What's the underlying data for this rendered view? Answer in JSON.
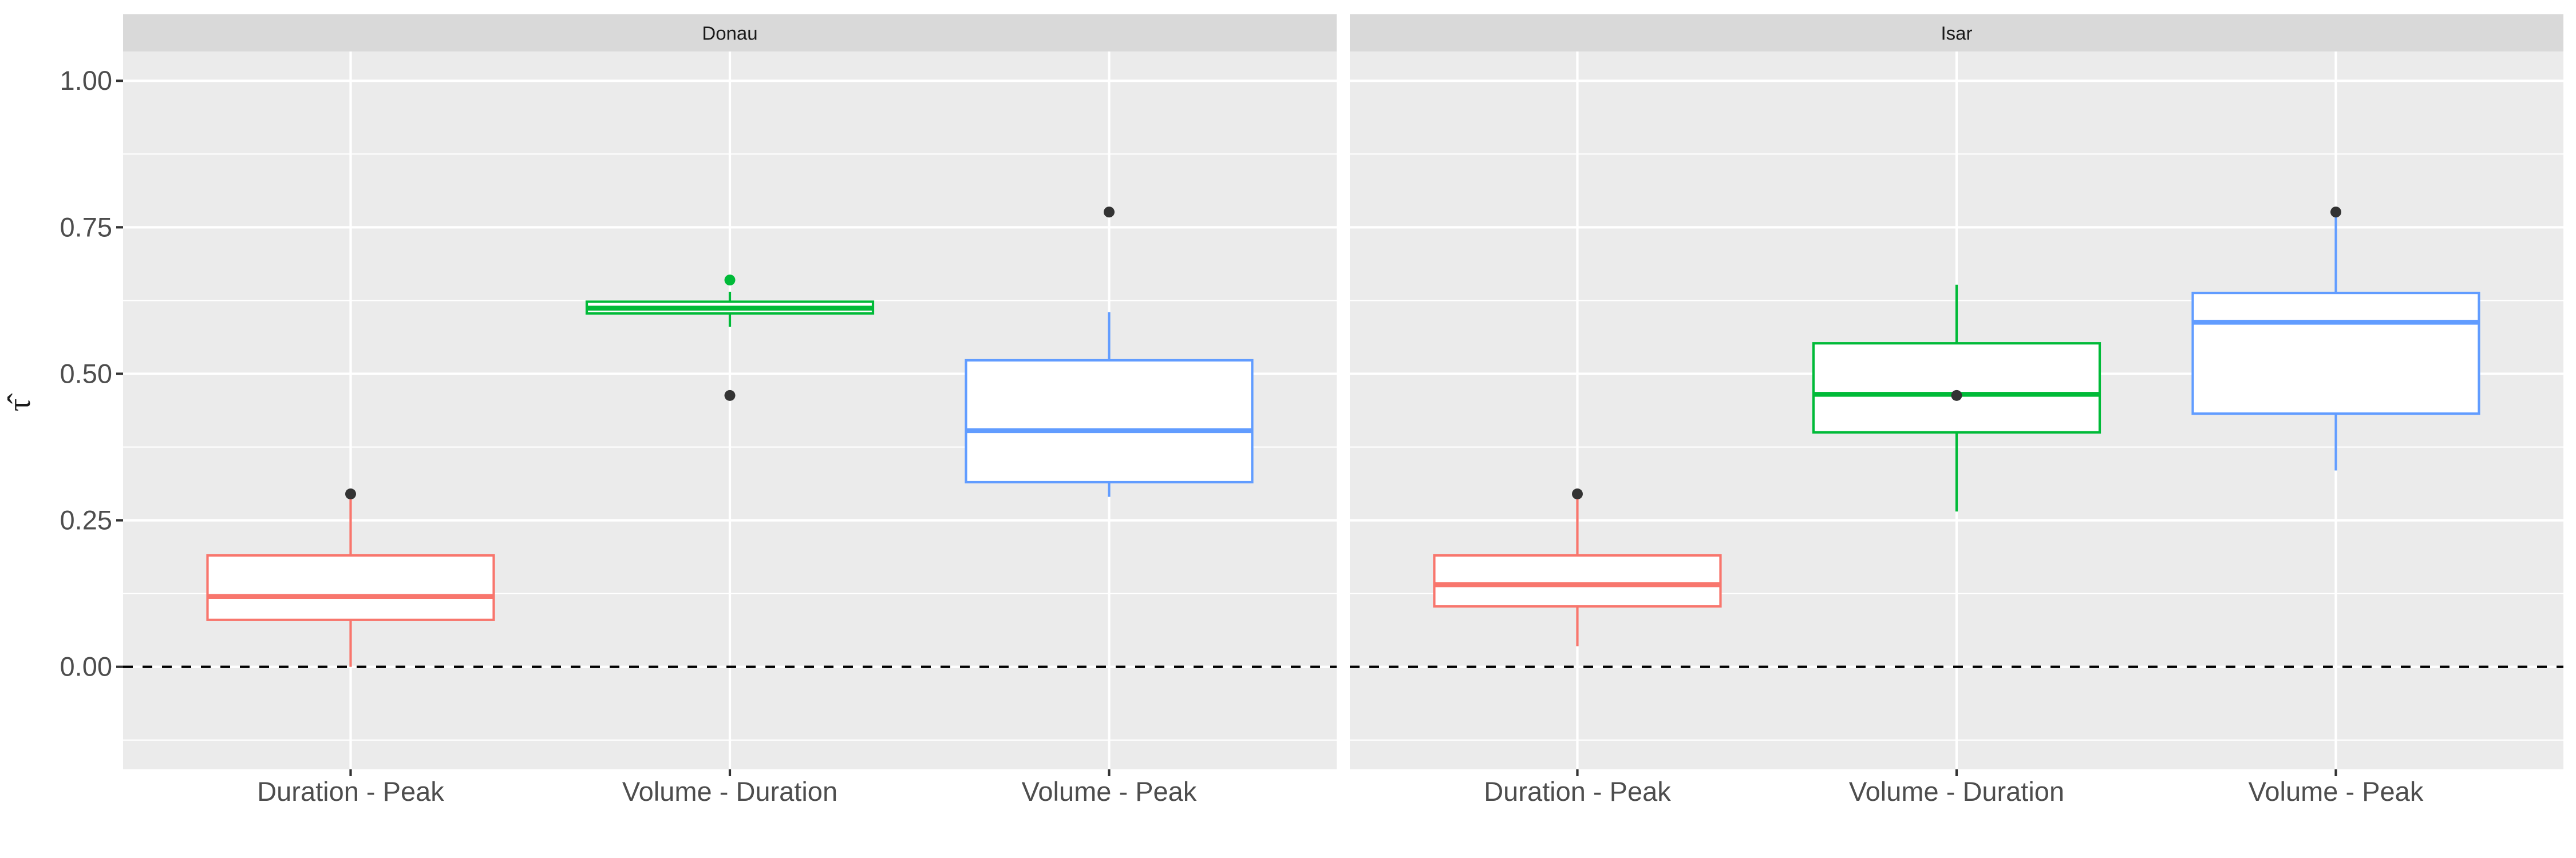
{
  "chart_data": {
    "type": "boxplot",
    "ylabel": "τ̂",
    "ylim": [
      -0.175,
      1.05
    ],
    "y_ticks": [
      0.0,
      0.25,
      0.5,
      0.75,
      1.0
    ],
    "y_tick_labels": [
      "0.00",
      "0.25",
      "0.50",
      "0.75",
      "1.00"
    ],
    "reference_line": 0.0,
    "categories": [
      "Duration - Peak",
      "Volume - Duration",
      "Volume - Peak"
    ],
    "colors": [
      "#f8766d",
      "#00ba38",
      "#619cff"
    ],
    "grid": true,
    "legend": "none",
    "panels": [
      {
        "title": "Donau",
        "boxes": [
          {
            "category": "Duration - Peak",
            "whisker_low": 0.0,
            "q1": 0.08,
            "median": 0.12,
            "q3": 0.19,
            "whisker_high": 0.29,
            "outliers": [
              0.295
            ]
          },
          {
            "category": "Volume - Duration",
            "whisker_low": 0.58,
            "q1": 0.603,
            "median": 0.612,
            "q3": 0.623,
            "whisker_high": 0.64,
            "outliers": [
              0.66,
              0.463
            ]
          },
          {
            "category": "Volume - Peak",
            "whisker_low": 0.29,
            "q1": 0.315,
            "median": 0.403,
            "q3": 0.523,
            "whisker_high": 0.605,
            "outliers": [
              0.776
            ]
          }
        ]
      },
      {
        "title": "Isar",
        "boxes": [
          {
            "category": "Duration - Peak",
            "whisker_low": 0.035,
            "q1": 0.103,
            "median": 0.14,
            "q3": 0.19,
            "whisker_high": 0.29,
            "outliers": [
              0.295
            ]
          },
          {
            "category": "Volume - Duration",
            "whisker_low": 0.265,
            "q1": 0.4,
            "median": 0.465,
            "q3": 0.552,
            "whisker_high": 0.652,
            "outliers": [
              0.463
            ]
          },
          {
            "category": "Volume - Peak",
            "whisker_low": 0.335,
            "q1": 0.432,
            "median": 0.588,
            "q3": 0.638,
            "whisker_high": 0.77,
            "outliers": [
              0.776
            ]
          }
        ]
      }
    ]
  }
}
